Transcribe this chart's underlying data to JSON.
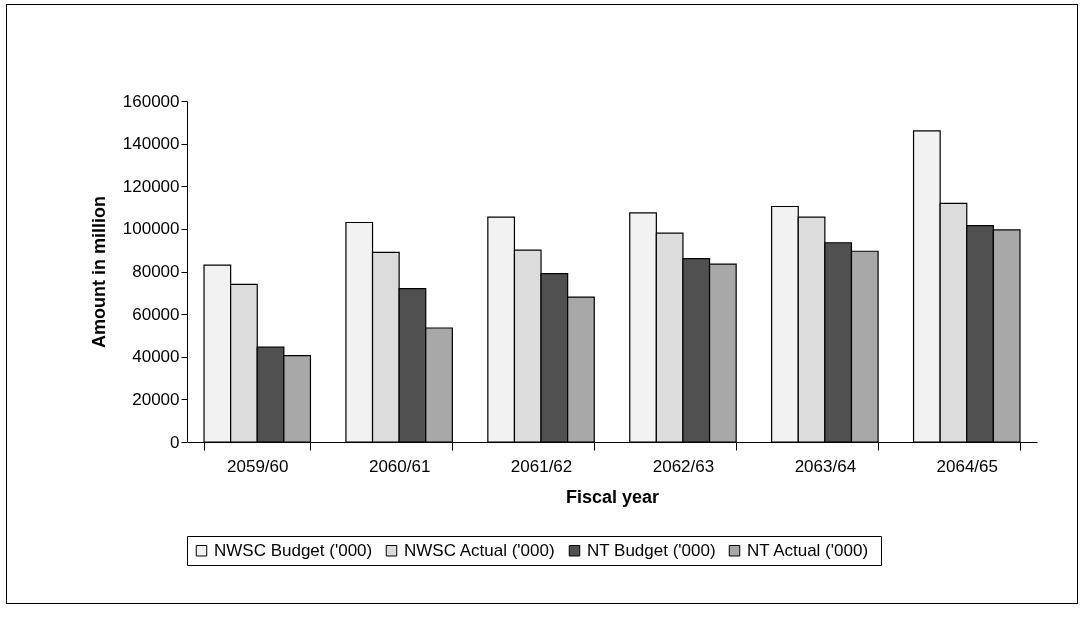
{
  "chart_data": {
    "type": "bar",
    "xlabel": "Fiscal year",
    "ylabel": "Amount in million",
    "categories": [
      "2059/60",
      "2060/61",
      "2061/62",
      "2062/63",
      "2063/64",
      "2064/65"
    ],
    "series": [
      {
        "name": "NWSC Budget ('000)",
        "color": "#f2f2f2",
        "values": [
          83000,
          103000,
          105500,
          107500,
          110500,
          146000
        ]
      },
      {
        "name": "NWSC Actual ('000)",
        "color": "#dcdcdc",
        "values": [
          74000,
          89000,
          90000,
          98000,
          105500,
          112000
        ]
      },
      {
        "name": "NT Budget ('000)",
        "color": "#505050",
        "values": [
          44500,
          72000,
          79000,
          86000,
          93500,
          101500
        ]
      },
      {
        "name": "NT Actual  ('000)",
        "color": "#a8a8a8",
        "values": [
          40500,
          53500,
          68000,
          83500,
          89500,
          99500
        ]
      }
    ],
    "ylim": [
      0,
      160000
    ],
    "yticks": [
      0,
      20000,
      40000,
      60000,
      80000,
      100000,
      120000,
      140000,
      160000
    ],
    "grid": false,
    "legend": "bottom"
  }
}
